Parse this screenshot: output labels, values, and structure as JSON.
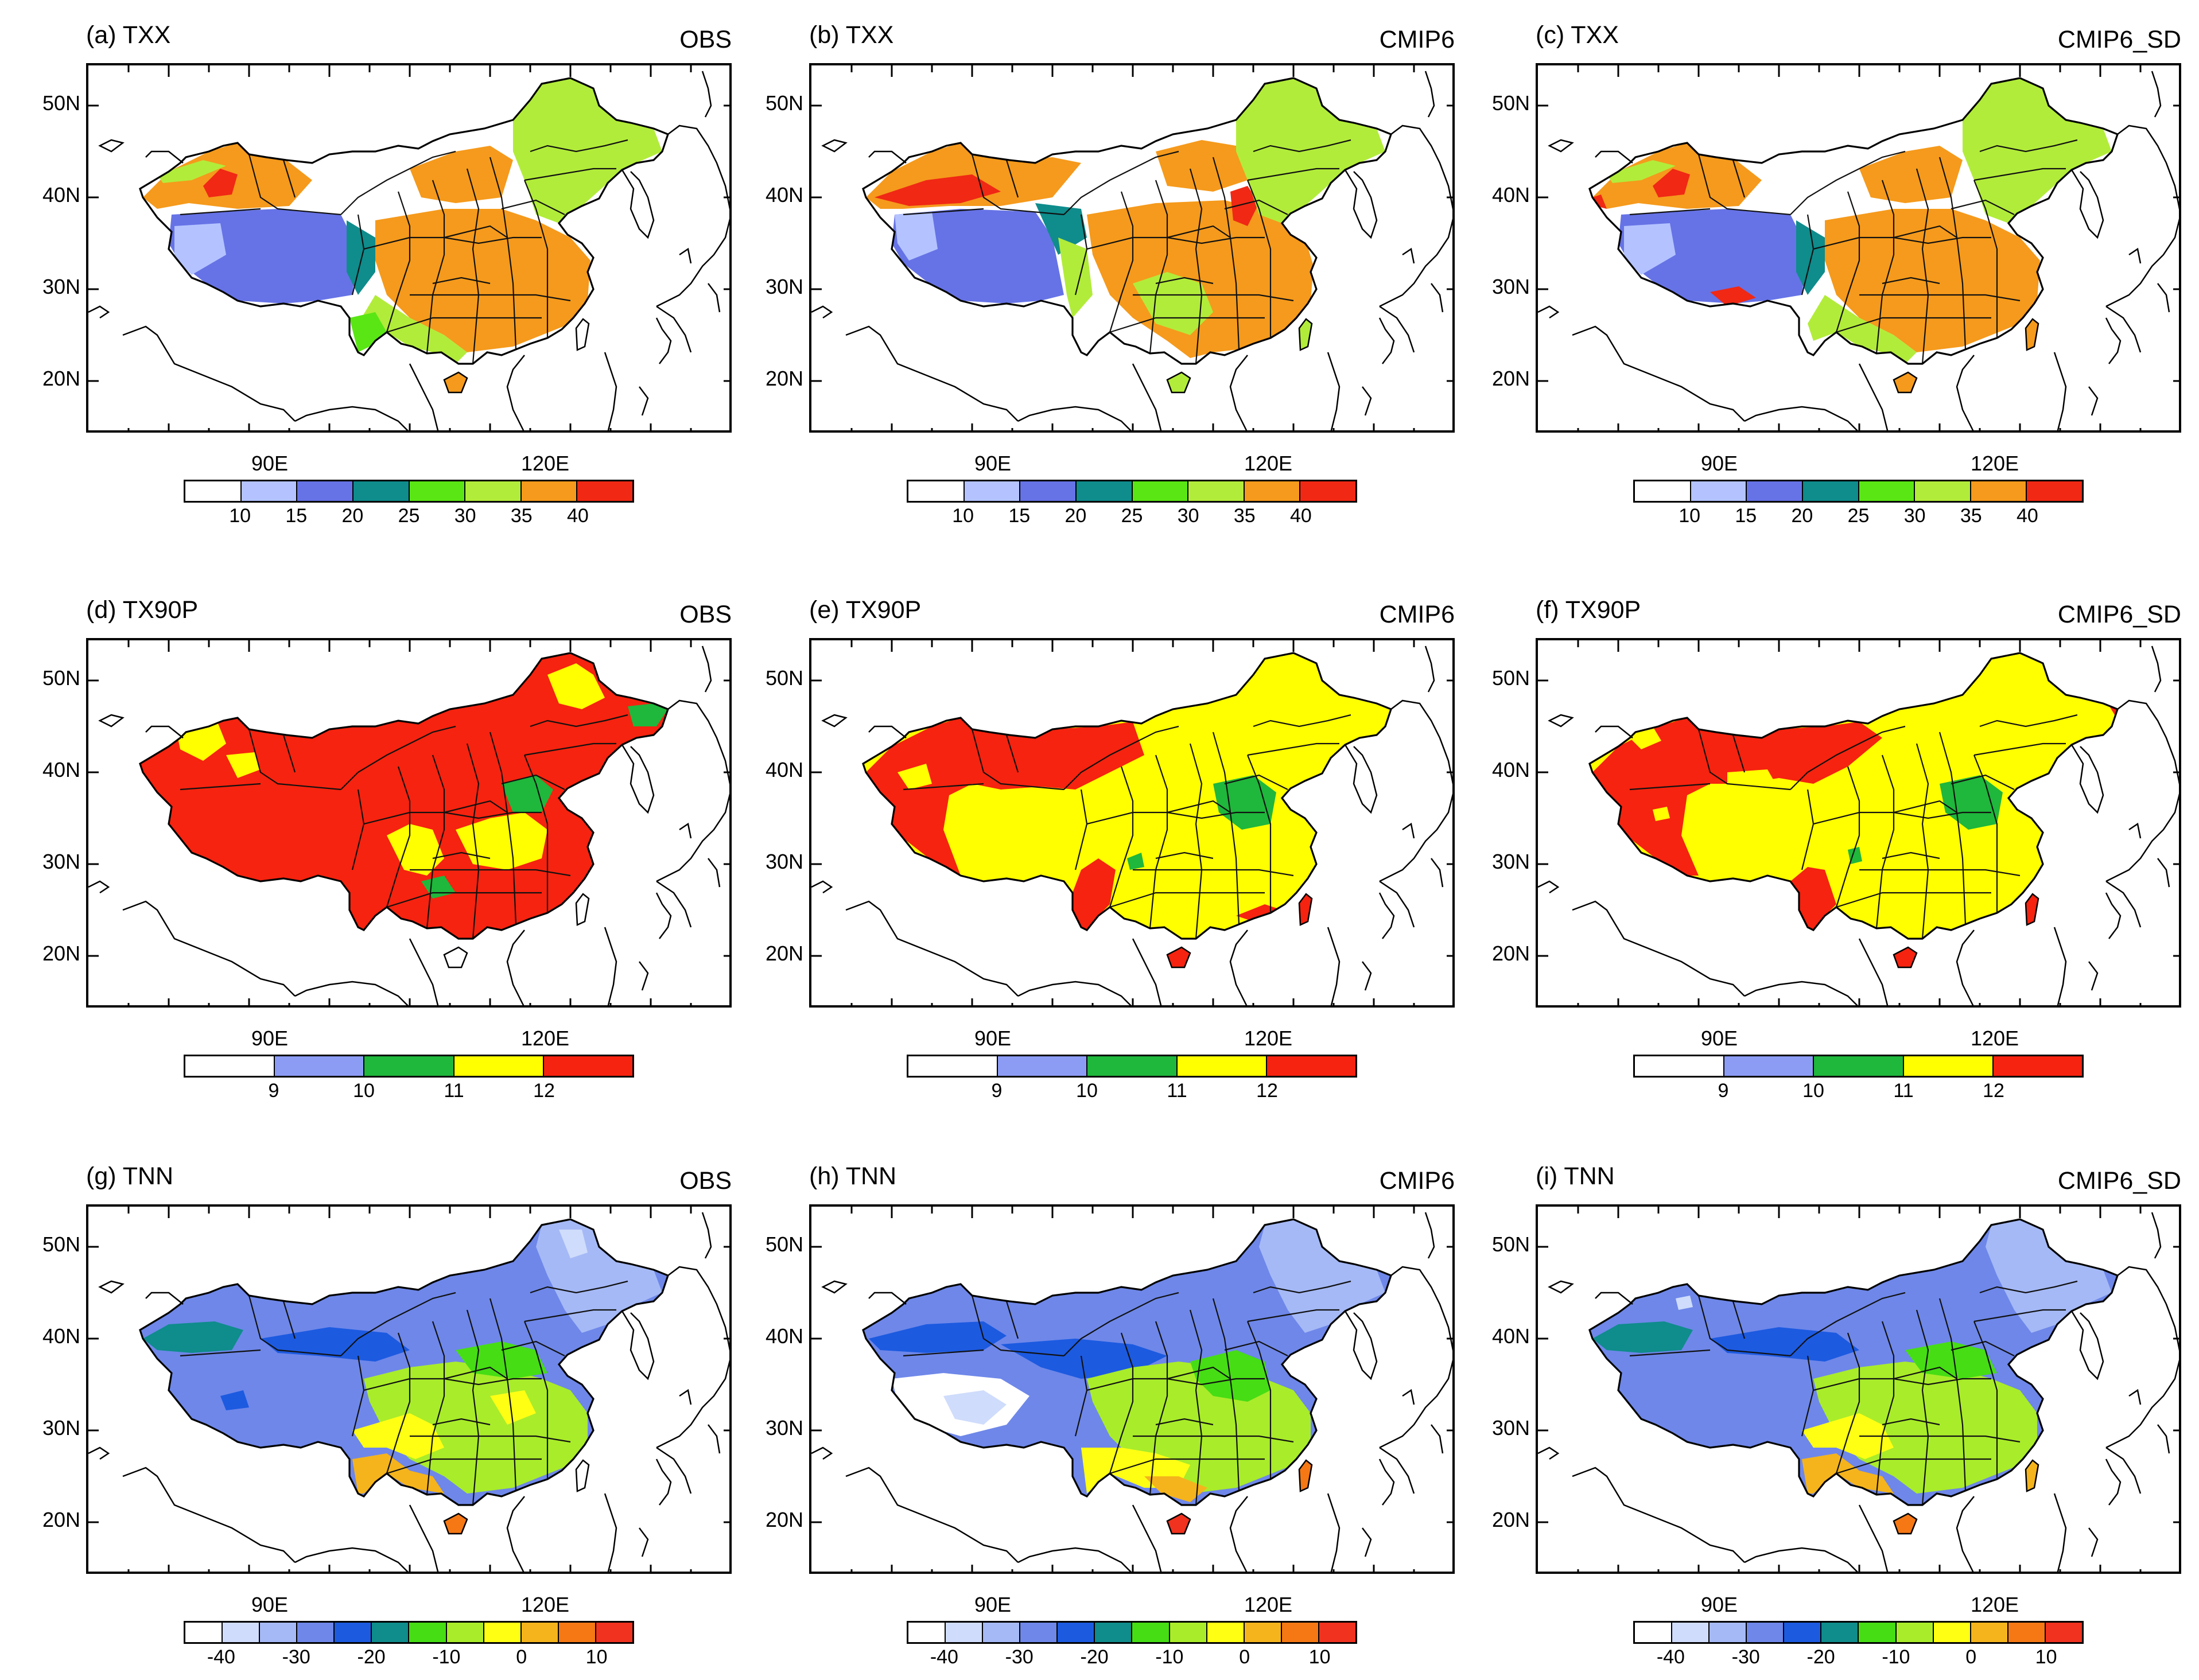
{
  "figure": {
    "lat_labels": [
      "50N",
      "40N",
      "30N",
      "20N"
    ],
    "lon_labels": [
      "90E",
      "120E"
    ]
  },
  "rows": [
    {
      "index": "TXX",
      "palette": [
        "#ffffff",
        "#b4c3ff",
        "#6673e6",
        "#0f8c8c",
        "#5ae614",
        "#b2ec3a",
        "#f59a1c",
        "#f02814"
      ],
      "colorbar_labels": [
        "10",
        "15",
        "20",
        "25",
        "30",
        "35",
        "40"
      ]
    },
    {
      "index": "TX90P",
      "palette": [
        "#ffffff",
        "#8c9cf5",
        "#1fb73c",
        "#ffff00",
        "#f5230f"
      ],
      "colorbar_labels": [
        "9",
        "10",
        "11",
        "12"
      ]
    },
    {
      "index": "TNN",
      "palette": [
        "#ffffff",
        "#cfdcfb",
        "#a5b9f6",
        "#6e87e9",
        "#1c5ae0",
        "#0f8c8c",
        "#46dd14",
        "#a9ec2a",
        "#ffff14",
        "#f5b41c",
        "#f57814",
        "#f0321e"
      ],
      "colorbar_labels": [
        "-40",
        "-30",
        "-20",
        "-10",
        "0",
        "10"
      ]
    }
  ],
  "panels": [
    {
      "title": "(a) TXX",
      "source": "OBS"
    },
    {
      "title": "(b) TXX",
      "source": "CMIP6"
    },
    {
      "title": "(c) TXX",
      "source": "CMIP6_SD"
    },
    {
      "title": "(d) TX90P",
      "source": "OBS"
    },
    {
      "title": "(e) TX90P",
      "source": "CMIP6"
    },
    {
      "title": "(f) TX90P",
      "source": "CMIP6_SD"
    },
    {
      "title": "(g) TNN",
      "source": "OBS"
    },
    {
      "title": "(h) TNN",
      "source": "CMIP6"
    },
    {
      "title": "(i) TNN",
      "source": "CMIP6_SD"
    }
  ]
}
